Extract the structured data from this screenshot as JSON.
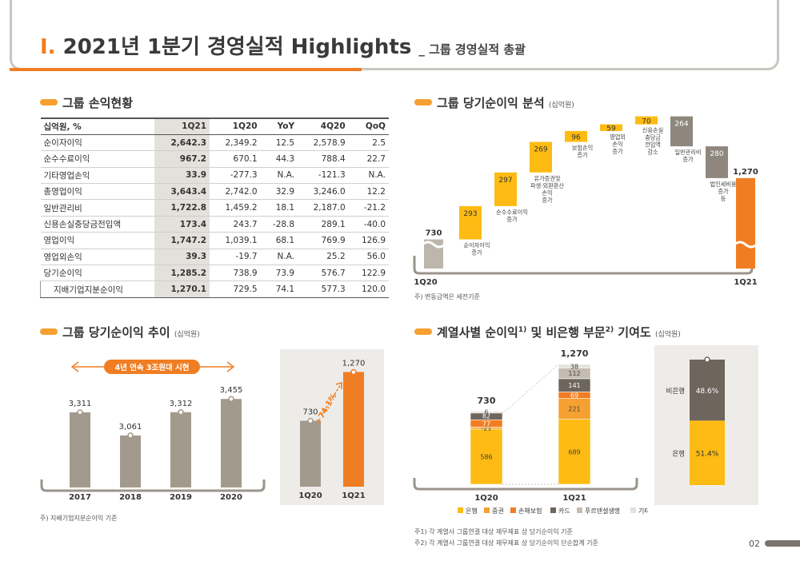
{
  "header": {
    "roman": "I.",
    "title": "2021년 1분기 경영실적 Highlights",
    "subtitle": "_ 그룹 경영실적 총괄"
  },
  "colors": {
    "orange": "#f07d22",
    "yellow": "#fdbb13",
    "gray_bar": "#a39a8e",
    "dark_brown": "#6e655d"
  },
  "income_table": {
    "section_title": "그룹 손익현황",
    "headers": [
      "십억원, %",
      "1Q21",
      "1Q20",
      "YoY",
      "4Q20",
      "QoQ"
    ],
    "rows": [
      {
        "label": "순이자이익",
        "cells": [
          "2,642.3",
          "2,349.2",
          "12.5",
          "2,578.9",
          "2.5"
        ]
      },
      {
        "label": "순수수료이익",
        "cells": [
          "967.2",
          "670.1",
          "44.3",
          "788.4",
          "22.7"
        ]
      },
      {
        "label": "기타영업손익",
        "cells": [
          "33.9",
          "-277.3",
          "N.A.",
          "-121.3",
          "N.A."
        ]
      },
      {
        "label": "총영업이익",
        "cells": [
          "3,643.4",
          "2,742.0",
          "32.9",
          "3,246.0",
          "12.2"
        ]
      },
      {
        "label": "일반관리비",
        "cells": [
          "1,722.8",
          "1,459.2",
          "18.1",
          "2,187.0",
          "-21.2"
        ]
      },
      {
        "label": "신용손실충당금전입액",
        "cells": [
          "173.4",
          "243.7",
          "-28.8",
          "289.1",
          "-40.0"
        ]
      },
      {
        "label": "영업이익",
        "cells": [
          "1,747.2",
          "1,039.1",
          "68.1",
          "769.9",
          "126.9"
        ]
      },
      {
        "label": "영업외손익",
        "cells": [
          "39.3",
          "-19.7",
          "N.A.",
          "25.2",
          "56.0"
        ]
      },
      {
        "label": "당기순이익",
        "cells": [
          "1,285.2",
          "738.9",
          "73.9",
          "576.7",
          "122.9"
        ]
      },
      {
        "label": "지배기업지분순이익",
        "cells": [
          "1,270.1",
          "729.5",
          "74.1",
          "577.3",
          "120.0"
        ]
      }
    ]
  },
  "chart_data": [
    {
      "type": "waterfall",
      "title": "그룹 당기순이익 분석",
      "unit": "(십억원)",
      "start": {
        "label": "1Q20",
        "value": 730
      },
      "end": {
        "label": "1Q21",
        "value": 1270
      },
      "steps": [
        {
          "label": "순이자이익 증가",
          "value": 293
        },
        {
          "label": "순수수료이익 증가",
          "value": 297
        },
        {
          "label": "유가증권및 파생·외환환산 손익 증가",
          "value": 269
        },
        {
          "label": "보험손익 증가",
          "value": 96
        },
        {
          "label": "영업외 손익 증가",
          "value": 59
        },
        {
          "label": "신용손실 충당금 전입액 감소",
          "value": 70
        },
        {
          "label": "일반관리비 증가",
          "value": -264
        },
        {
          "label": "법인세비용 증가 등",
          "value": -280
        }
      ],
      "note": "주) 변동금액은 세전기준"
    },
    {
      "type": "bar",
      "title": "그룹 당기순이익 추이",
      "unit": "(십억원)",
      "categories": [
        "2017",
        "2018",
        "2019",
        "2020"
      ],
      "values": [
        3311,
        3061,
        3312,
        3455
      ],
      "value_labels": [
        "3,311",
        "3,061",
        "3,312",
        "3,455"
      ],
      "banner": "4년 연속 3조원대 시현",
      "note": "주) 지배기업지분순이익 기준"
    },
    {
      "type": "bar",
      "categories": [
        "1Q20",
        "1Q21"
      ],
      "values": [
        730,
        1270
      ],
      "value_labels": [
        "730",
        "1,270"
      ],
      "growth_label": "+74.1%"
    },
    {
      "type": "stacked_bar",
      "title": "계열사별 순이익",
      "title_mid": " 및 비은행 부문",
      "title_end": " 기여도",
      "unit": "(십억원)",
      "categories": [
        "1Q20",
        "1Q21"
      ],
      "totals": [
        730,
        1270
      ],
      "total_labels": [
        "730",
        "1,270"
      ],
      "series": [
        {
          "name": "은행",
          "values": [
            586,
            689
          ],
          "labels": [
            "586",
            "689"
          ],
          "color": "#fdbb13"
        },
        {
          "name": "증권",
          "values": [
            -21,
            221
          ],
          "labels": [
            "-21",
            "221"
          ],
          "color": "#f5a031"
        },
        {
          "name": "손해보험",
          "values": [
            77,
            69
          ],
          "labels": [
            "77",
            "69"
          ],
          "color": "#f07d22"
        },
        {
          "name": "카드",
          "values": [
            82,
            141
          ],
          "labels": [
            "82",
            "141"
          ],
          "color": "#6e655d"
        },
        {
          "name": "푸르덴셜생명",
          "values": [
            0,
            112
          ],
          "labels": [
            "",
            "112"
          ],
          "color": "#c4bcb0"
        },
        {
          "name": "기타(연결조정 포함)",
          "values": [
            6,
            38
          ],
          "labels": [
            "6",
            "38"
          ],
          "color": "#e3e0db"
        }
      ],
      "notes": [
        "주1) 각 계열사 그룹연결 대상 재무제표 상 당기순이익 기준",
        "주2) 각 계열사 그룹연결 대상 재무제표 상 당기순이익 단순합계 기준"
      ]
    },
    {
      "type": "stacked_bar",
      "categories": [
        "1Q21"
      ],
      "series": [
        {
          "name": "은행",
          "values": [
            51.4
          ],
          "labels": [
            "51.4%"
          ],
          "color": "#fdbb13"
        },
        {
          "name": "비은행",
          "values": [
            48.6
          ],
          "labels": [
            "48.6%"
          ],
          "color": "#6e655d"
        }
      ]
    }
  ],
  "page_number": "02"
}
